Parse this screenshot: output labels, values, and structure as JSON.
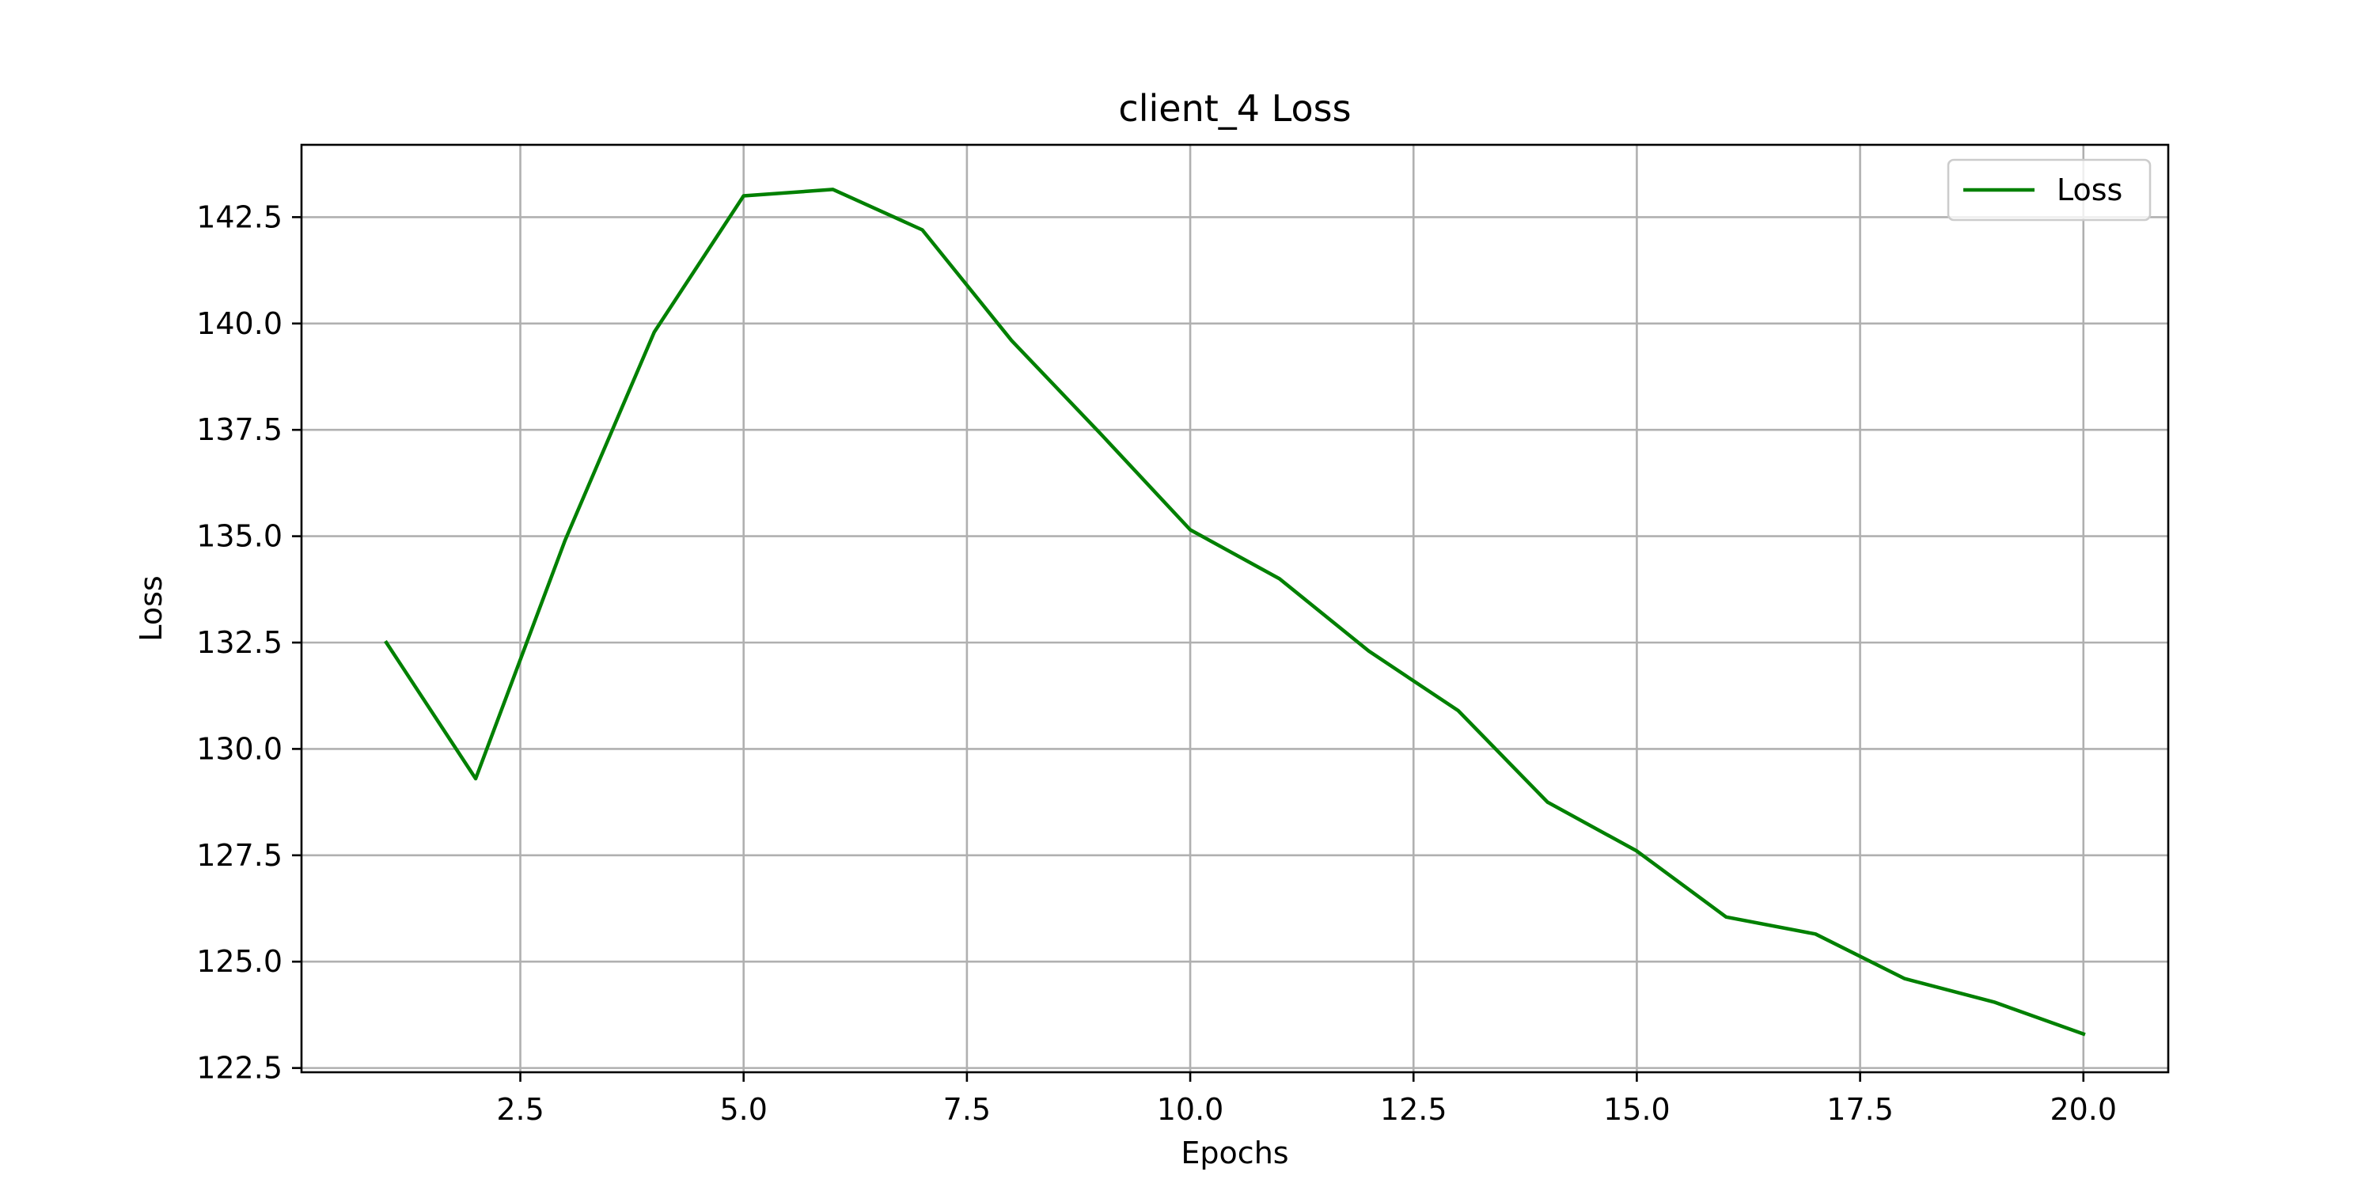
{
  "chart_data": {
    "type": "line",
    "title": "client_4 Loss",
    "xlabel": "Epochs",
    "ylabel": "Loss",
    "xlim": [
      0.05,
      20.95
    ],
    "ylim": [
      122.4,
      144.2
    ],
    "xticks": [
      2.5,
      5.0,
      7.5,
      10.0,
      12.5,
      15.0,
      17.5,
      20.0
    ],
    "xtick_labels": [
      "2.5",
      "5.0",
      "7.5",
      "10.0",
      "12.5",
      "15.0",
      "17.5",
      "20.0"
    ],
    "yticks": [
      122.5,
      125.0,
      127.5,
      130.0,
      132.5,
      135.0,
      137.5,
      140.0,
      142.5
    ],
    "ytick_labels": [
      "122.5",
      "125.0",
      "127.5",
      "130.0",
      "132.5",
      "135.0",
      "137.5",
      "140.0",
      "142.5"
    ],
    "grid": true,
    "legend_position": "top-right",
    "series": [
      {
        "name": "Loss",
        "color": "#008000",
        "x": [
          1,
          2,
          3,
          4,
          5,
          6,
          7,
          8,
          9,
          10,
          11,
          12,
          13,
          14,
          15,
          16,
          17,
          18,
          19,
          20
        ],
        "y": [
          132.5,
          129.3,
          134.9,
          139.8,
          143.0,
          143.15,
          142.2,
          139.6,
          137.4,
          135.15,
          134.0,
          132.3,
          130.9,
          128.75,
          127.6,
          126.05,
          125.65,
          124.6,
          124.05,
          123.3
        ]
      }
    ]
  }
}
